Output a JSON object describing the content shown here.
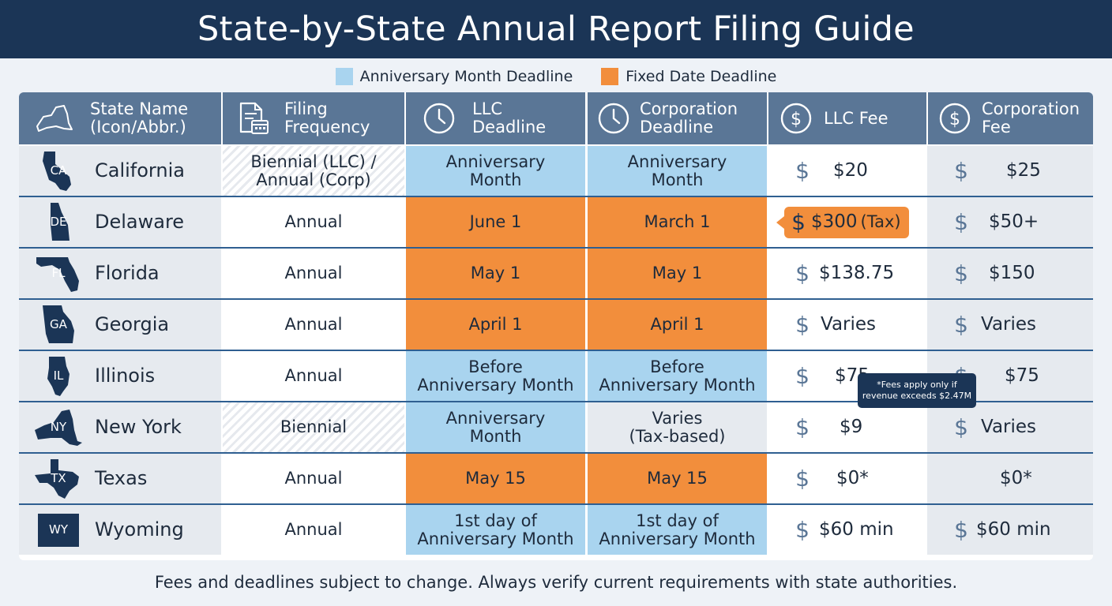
{
  "page_title": "State-by-State Annual Report Filing Guide",
  "legend": [
    {
      "label": "Anniversary Month Deadline",
      "color": "#a9d4ef"
    },
    {
      "label": "Fixed Date Deadline",
      "color": "#f28e3c"
    }
  ],
  "headers": {
    "state": "State Name\n(Icon/Abbr.)",
    "frequency": "Filing\nFrequency",
    "llc_deadline": "LLC\nDeadline",
    "corp_deadline": "Corporation\nDeadline",
    "llc_fee": "LLC Fee",
    "corp_fee": "Corporation\nFee"
  },
  "rows": [
    {
      "abbr": "CA",
      "name": "California",
      "frequency": "Biennial (LLC) /\nAnnual (Corp)",
      "llc_deadline": "Anniversary\nMonth",
      "corp_deadline": "Anniversary\nMonth",
      "llc_fee": "$20",
      "corp_fee": "$25"
    },
    {
      "abbr": "DE",
      "name": "Delaware",
      "frequency": "Annual",
      "llc_deadline": "June 1",
      "corp_deadline": "March 1",
      "llc_fee": "$300",
      "llc_fee_note": "(Tax)",
      "corp_fee": "$50+"
    },
    {
      "abbr": "FL",
      "name": "Florida",
      "frequency": "Annual",
      "llc_deadline": "May 1",
      "corp_deadline": "May 1",
      "llc_fee": "$138.75",
      "corp_fee": "$150"
    },
    {
      "abbr": "GA",
      "name": "Georgia",
      "frequency": "Annual",
      "llc_deadline": "April 1",
      "corp_deadline": "April 1",
      "llc_fee": "Varies",
      "corp_fee": "Varies"
    },
    {
      "abbr": "IL",
      "name": "Illinois",
      "frequency": "Annual",
      "llc_deadline": "Before\nAnniversary Month",
      "corp_deadline": "Before\nAnniversary Month",
      "llc_fee": "$75",
      "corp_fee": "$75"
    },
    {
      "abbr": "NY",
      "name": "New York",
      "frequency": "Biennial",
      "llc_deadline": "Anniversary\nMonth",
      "corp_deadline": "Varies\n(Tax-based)",
      "llc_fee": "$9",
      "corp_fee": "Varies"
    },
    {
      "abbr": "TX",
      "name": "Texas",
      "frequency": "Annual",
      "llc_deadline": "May 15",
      "corp_deadline": "May 15",
      "llc_fee": "$0*",
      "corp_fee": "$0*"
    },
    {
      "abbr": "WY",
      "name": "Wyoming",
      "frequency": "Annual",
      "llc_deadline": "1st day of\nAnniversary Month",
      "corp_deadline": "1st day of\nAnniversary Month",
      "llc_fee": "$60 min",
      "corp_fee": "$60 min"
    }
  ],
  "tooltip": "*Fees apply only if\nrevenue exceeds $2.47M",
  "dollar_symbol": "$",
  "footer": "Fees and deadlines subject to change. Always verify current requirements with state authorities.",
  "colors": {
    "title_bar": "#1b3556",
    "header": "#5a7696",
    "anniversary": "#a9d4ef",
    "fixed_date": "#f28e3c",
    "row_separator": "#2f5f91"
  }
}
